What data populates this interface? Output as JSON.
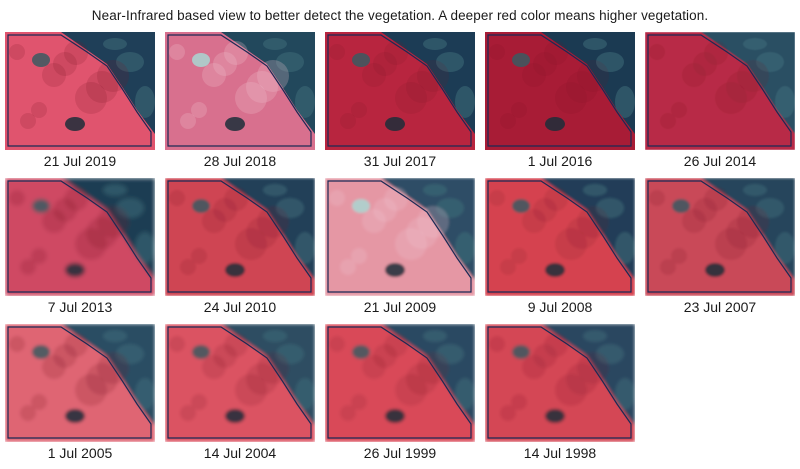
{
  "caption": "Near-Infrared based view to better detect the vegetation. A deeper red color means higher vegetation.",
  "images": [
    {
      "date": "21 Jul 2019",
      "vegetation": 0.72,
      "blur": 0.0,
      "water": "#1f3f58",
      "red": "#e0546e",
      "pale": false,
      "spots": true
    },
    {
      "date": "28 Jul 2018",
      "vegetation": 0.55,
      "blur": 0.0,
      "water": "#22485c",
      "red": "#d8708e",
      "pale": true,
      "spots": true
    },
    {
      "date": "31 Jul 2017",
      "vegetation": 0.85,
      "blur": 0.0,
      "water": "#1c3c55",
      "red": "#b8253f",
      "pale": false,
      "spots": true
    },
    {
      "date": "1 Jul 2016",
      "vegetation": 0.9,
      "blur": 0.0,
      "water": "#1b3a52",
      "red": "#a81c36",
      "pale": false,
      "spots": true
    },
    {
      "date": "26 Jul 2014",
      "vegetation": 0.82,
      "blur": 0.6,
      "water": "#2a4f64",
      "red": "#b82c46",
      "pale": false,
      "spots": false
    },
    {
      "date": "7 Jul 2013",
      "vegetation": 0.65,
      "blur": 2.0,
      "water": "#1d3d52",
      "red": "#cf4a63",
      "pale": false,
      "spots": true
    },
    {
      "date": "24 Jul 2010",
      "vegetation": 0.78,
      "blur": 1.3,
      "water": "#243f58",
      "red": "#cf4553",
      "pale": false,
      "spots": true
    },
    {
      "date": "21 Jul 2009",
      "vegetation": 0.45,
      "blur": 1.3,
      "water": "#2e4e66",
      "red": "#e597a4",
      "pale": true,
      "spots": true
    },
    {
      "date": "9 Jul 2008",
      "vegetation": 0.8,
      "blur": 1.3,
      "water": "#213e58",
      "red": "#d5434f",
      "pale": false,
      "spots": true
    },
    {
      "date": "23 Jul 2007",
      "vegetation": 0.72,
      "blur": 1.3,
      "water": "#26445b",
      "red": "#c94858",
      "pale": false,
      "spots": true
    },
    {
      "date": "1 Jul 2005",
      "vegetation": 0.7,
      "blur": 1.6,
      "water": "#2b4d64",
      "red": "#df6573",
      "pale": false,
      "spots": true
    },
    {
      "date": "14 Jul 2004",
      "vegetation": 0.78,
      "blur": 1.6,
      "water": "#2d4d62",
      "red": "#db5362",
      "pale": false,
      "spots": true
    },
    {
      "date": "26 Jul 1999",
      "vegetation": 0.8,
      "blur": 1.6,
      "water": "#2c4a62",
      "red": "#d94a59",
      "pale": false,
      "spots": true
    },
    {
      "date": "14 Jul 1998",
      "vegetation": 0.8,
      "blur": 1.6,
      "water": "#2a4660",
      "red": "#d44655",
      "pale": false,
      "spots": true
    }
  ]
}
